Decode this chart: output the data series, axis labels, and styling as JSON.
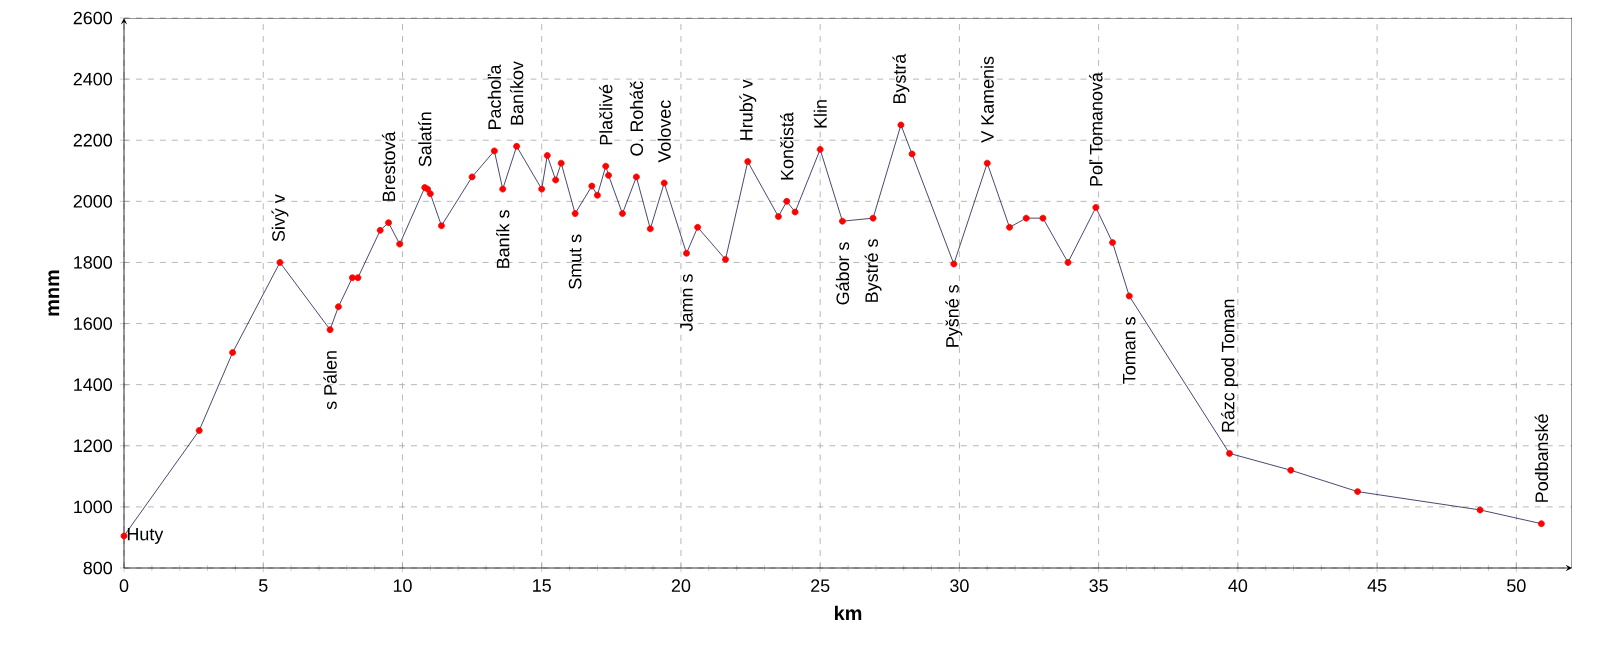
{
  "chart_data": {
    "type": "line",
    "xlabel": "km",
    "ylabel": "mnm",
    "x": [
      0,
      2.7,
      3.9,
      5.6,
      7.4,
      7.7,
      8.2,
      8.4,
      9.2,
      9.5,
      9.9,
      10.8,
      10.9,
      11.0,
      11.4,
      12.5,
      13.3,
      13.6,
      14.1,
      15.0,
      15.2,
      15.5,
      15.7,
      16.2,
      16.8,
      17.0,
      17.3,
      17.4,
      17.9,
      18.4,
      18.9,
      19.4,
      20.2,
      20.6,
      21.6,
      22.4,
      23.5,
      23.8,
      24.1,
      25.0,
      25.8,
      26.9,
      27.9,
      28.3,
      29.8,
      31.0,
      31.8,
      32.4,
      33.0,
      33.9,
      34.9,
      35.5,
      36.1,
      39.7,
      41.9,
      44.3,
      48.7,
      50.9
    ],
    "series": [
      {
        "color": "#1a1a4e",
        "values": [
          905,
          1250,
          1505,
          1800,
          1580,
          1655,
          1750,
          1750,
          1905,
          1930,
          1860,
          2045,
          2040,
          2025,
          1920,
          2080,
          2165,
          2040,
          2180,
          2040,
          2150,
          2070,
          2125,
          1960,
          2050,
          2020,
          2115,
          2085,
          1960,
          2080,
          1910,
          2060,
          1830,
          1915,
          1810,
          2130,
          1950,
          2000,
          1965,
          2170,
          1935,
          1945,
          2250,
          2155,
          1795,
          2125,
          1915,
          1945,
          1945,
          1800,
          1980,
          1865,
          1690,
          1175,
          1120,
          1050,
          990,
          945
        ]
      }
    ],
    "marker": "circle",
    "line_style": "solid",
    "grid": true,
    "xlim": [
      0,
      52
    ],
    "xticks": [
      0,
      5,
      10,
      15,
      20,
      25,
      30,
      35,
      40,
      45,
      50
    ],
    "ylim": [
      800,
      2600
    ],
    "yticks": [
      800,
      1000,
      1200,
      1400,
      1600,
      1800,
      2000,
      2200,
      2400,
      2600
    ],
    "annotations": [
      {
        "text": "Huty",
        "x": 0,
        "y": 905
      },
      {
        "text": "Sivý v",
        "x": 5.6,
        "y": 1800
      },
      {
        "text": "s Pálen",
        "x": 7.4,
        "y": 1580
      },
      {
        "text": "Brestová",
        "x": 9.5,
        "y": 1930
      },
      {
        "text": "Salatín",
        "x": 10.8,
        "y": 2045
      },
      {
        "text": "Pachoľa",
        "x": 13.3,
        "y": 2165
      },
      {
        "text": "Baník s",
        "x": 13.6,
        "y": 2040
      },
      {
        "text": "Baníkov",
        "x": 14.1,
        "y": 2180
      },
      {
        "text": "Smut s",
        "x": 16.2,
        "y": 1960
      },
      {
        "text": "Plačlivé",
        "x": 17.3,
        "y": 2115
      },
      {
        "text": "O. Roháč",
        "x": 18.4,
        "y": 2080
      },
      {
        "text": "Volovec",
        "x": 19.4,
        "y": 2060
      },
      {
        "text": "Jamn s",
        "x": 20.2,
        "y": 1830
      },
      {
        "text": "Hrubý v",
        "x": 22.4,
        "y": 2130
      },
      {
        "text": "Končistá",
        "x": 23.8,
        "y": 2000
      },
      {
        "text": "Klin",
        "x": 25.0,
        "y": 2170
      },
      {
        "text": "Gábor s",
        "x": 25.8,
        "y": 1935
      },
      {
        "text": "Bystré s",
        "x": 26.9,
        "y": 1945
      },
      {
        "text": "Bystrá",
        "x": 27.9,
        "y": 2250
      },
      {
        "text": "Pyšné s",
        "x": 29.8,
        "y": 1795
      },
      {
        "text": "V Kamenis",
        "x": 31.0,
        "y": 2125
      },
      {
        "text": "Poľ Tomanová",
        "x": 34.9,
        "y": 1980
      },
      {
        "text": "Toman s",
        "x": 36.1,
        "y": 1690
      },
      {
        "text": "Rázc pod Toman",
        "x": 39.7,
        "y": 1175
      },
      {
        "text": "Podbanské",
        "x": 50.9,
        "y": 945
      }
    ]
  }
}
